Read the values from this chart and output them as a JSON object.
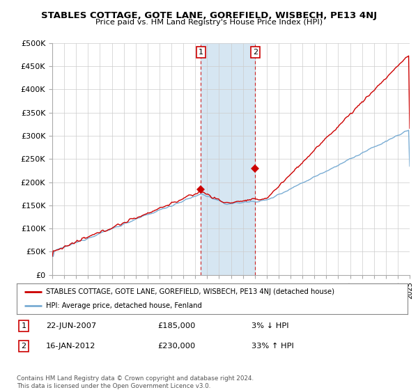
{
  "title": "STABLES COTTAGE, GOTE LANE, GOREFIELD, WISBECH, PE13 4NJ",
  "subtitle": "Price paid vs. HM Land Registry's House Price Index (HPI)",
  "ylim": [
    0,
    500000
  ],
  "yticks": [
    0,
    50000,
    100000,
    150000,
    200000,
    250000,
    300000,
    350000,
    400000,
    450000,
    500000
  ],
  "ytick_labels": [
    "£0",
    "£50K",
    "£100K",
    "£150K",
    "£200K",
    "£250K",
    "£300K",
    "£350K",
    "£400K",
    "£450K",
    "£500K"
  ],
  "sale1_date": 2007.47,
  "sale1_price": 185000,
  "sale1_label": "1",
  "sale2_date": 2012.04,
  "sale2_price": 230000,
  "sale2_label": "2",
  "red_line_color": "#cc0000",
  "blue_line_color": "#7aadd4",
  "shaded_color": "#d6e6f2",
  "grid_color": "#cccccc",
  "background_color": "#ffffff",
  "legend_red_label": "STABLES COTTAGE, GOTE LANE, GOREFIELD, WISBECH, PE13 4NJ (detached house)",
  "legend_blue_label": "HPI: Average price, detached house, Fenland",
  "table_row1": [
    "1",
    "22-JUN-2007",
    "£185,000",
    "3% ↓ HPI"
  ],
  "table_row2": [
    "2",
    "16-JAN-2012",
    "£230,000",
    "33% ↑ HPI"
  ],
  "footer": "Contains HM Land Registry data © Crown copyright and database right 2024.\nThis data is licensed under the Open Government Licence v3.0.",
  "xmin": 1995,
  "xmax": 2025
}
